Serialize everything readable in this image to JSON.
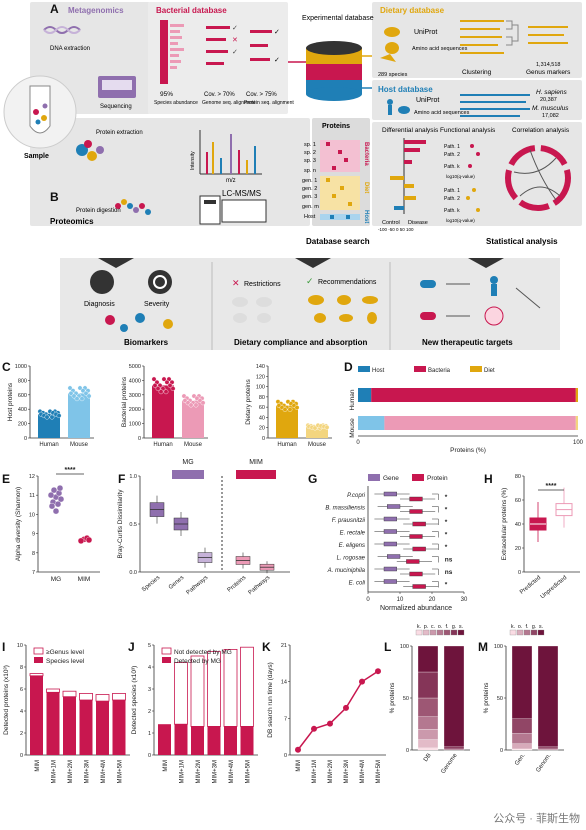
{
  "panels": {
    "A": "A",
    "B": "B",
    "C": "C",
    "D": "D",
    "E": "E",
    "F": "F",
    "G": "G",
    "H": "H",
    "I": "I",
    "J": "J",
    "K": "K",
    "L": "L",
    "M": "M"
  },
  "diagram_a": {
    "metagenomics": "Metagenomics",
    "dna_extraction": "DNA extraction",
    "sequencing": "Sequencing",
    "sample": "Sample",
    "bacterial_db_title": "Bacterial database",
    "pct95": "95%",
    "species_abundance": "Species abundance",
    "cov70": "Cov. > 70%",
    "genome_seq_alignment": "Genome seq. alignment",
    "cov75": "Cov. > 75%",
    "protein_seq_alignment": "Protein seq. alignment",
    "experimental_database": "Experimental database",
    "dietary_db_title": "Dietary database",
    "uniprot1": "UniProt",
    "amino_acid_sequences1": "Amino acid sequences",
    "species289": "289 species",
    "clustering": "Clustering",
    "genus_count": "1,314,518",
    "genus_markers": "Genus markers",
    "host_db_title": "Host database",
    "uniprot2": "UniProt",
    "amino_acid_sequences2": "Amino acid sequences",
    "h_sapiens": "H. sapiens",
    "h_sapiens_n": "20,387",
    "m_musculus": "M. musculus",
    "m_musculus_n": "17,082"
  },
  "diagram_b": {
    "protein_extraction": "Protein extraction",
    "protein_digestion": "Protein digestion",
    "intensity": "Intensity",
    "mz": "m/z",
    "lcmsms": "LC-MS/MS",
    "proteomics": "Proteomics",
    "proteins": "Proteins",
    "sp1": "sp. 1",
    "sp2": "sp. 2",
    "sp3": "sp. 3",
    "spn": "sp. n",
    "gen1": "gen. 1",
    "gen2": "gen. 2",
    "gen3": "gen. 3",
    "genm": "gen. m",
    "host": "Host",
    "bacteria_lbl": "Bacteria",
    "diet_lbl": "Diet",
    "host_lbl": "Host",
    "database_search": "Database search",
    "differential_analysis": "Differential analysis",
    "functional_analysis": "Functional analysis",
    "correlation_analysis": "Correlation analysis",
    "path1": "Path. 1",
    "path2": "Path. 2",
    "pathk": "Path. k",
    "log10q": "log10(q-value)",
    "control": "Control",
    "disease": "Disease",
    "ticks": "-100 -50  0  50  100",
    "statistical_analysis": "Statistical analysis"
  },
  "bottom_strip": {
    "diagnosis": "Diagnosis",
    "severity": "Severity",
    "biomarkers": "Biomarkers",
    "restrictions": "Restrictions",
    "recommendations": "Recommendations",
    "dietary": "Dietary compliance and absorption",
    "therapeutic": "New therapeutic targets"
  },
  "colors": {
    "host_blue": "#1f7fb6",
    "mouse_light": "#7fc4e8",
    "bacteria": "#c8174f",
    "bacteria_light": "#ec9ab6",
    "diet": "#e0a70e",
    "diet_light": "#f3d57f",
    "purple": "#8f6fae",
    "purple_light": "#c6b2d8",
    "panel_gray": "#e6e6e6"
  },
  "chart_c": {
    "plots": [
      {
        "ylabel": "Host proteins",
        "ylim": [
          0,
          1000
        ],
        "ticks": [
          "0",
          "200",
          "400",
          "600",
          "800",
          "1000"
        ],
        "categories": [
          "Human",
          "Mouse"
        ],
        "values": [
          330,
          620
        ]
      },
      {
        "ylabel": "Bacterial proteins",
        "ylim": [
          0,
          5000
        ],
        "ticks": [
          "0",
          "1000",
          "2000",
          "3000",
          "4000",
          "5000"
        ],
        "categories": [
          "Human",
          "Mouse"
        ],
        "values": [
          3650,
          2600
        ]
      },
      {
        "ylabel": "Dietary proteins",
        "ylim": [
          0,
          140
        ],
        "ticks": [
          "0",
          "20",
          "40",
          "60",
          "80",
          "100",
          "120",
          "140"
        ],
        "categories": [
          "Human",
          "Mouse"
        ],
        "values": [
          63,
          22
        ]
      }
    ]
  },
  "chart_data": [
    {
      "panel": "C",
      "type": "bar",
      "subplots": [
        {
          "ylabel": "Host proteins",
          "categories": [
            "Human",
            "Mouse"
          ],
          "values": [
            330,
            620
          ],
          "ylim": [
            0,
            1000
          ]
        },
        {
          "ylabel": "Bacterial proteins",
          "categories": [
            "Human",
            "Mouse"
          ],
          "values": [
            3650,
            2600
          ],
          "ylim": [
            0,
            5000
          ]
        },
        {
          "ylabel": "Dietary proteins",
          "categories": [
            "Human",
            "Mouse"
          ],
          "values": [
            63,
            22
          ],
          "ylim": [
            0,
            140
          ]
        }
      ]
    },
    {
      "panel": "D",
      "type": "bar",
      "orientation": "horizontal",
      "stacked": true,
      "categories": [
        "Human",
        "Mouse"
      ],
      "series": [
        {
          "name": "Host",
          "values": [
            6,
            12
          ]
        },
        {
          "name": "Bacteria",
          "values": [
            93,
            87
          ]
        },
        {
          "name": "Diet",
          "values": [
            1,
            1
          ]
        }
      ],
      "xlabel": "Proteins (%)",
      "xlim": [
        0,
        100
      ],
      "xticks": [
        "0",
        "100"
      ]
    },
    {
      "panel": "E",
      "type": "scatter",
      "categories": [
        "MG",
        "MIM"
      ],
      "values": [
        10.9,
        8.7
      ],
      "ylabel": "Alpha diversity (Shannon)",
      "ylim": [
        7,
        12
      ],
      "yticks": [
        "7",
        "8",
        "9",
        "10",
        "11",
        "12"
      ],
      "significance": "****"
    },
    {
      "panel": "F",
      "type": "box",
      "categories": [
        "Species",
        "Genes",
        "Pathways",
        "Proteins",
        "Pathways"
      ],
      "groups": [
        "MG",
        "MG",
        "MG",
        "MIM",
        "MIM"
      ],
      "medians": [
        0.65,
        0.5,
        0.15,
        0.12,
        0.05
      ],
      "ylabel": "Bray-Curtis Dissimilarity",
      "ylim": [
        0,
        1
      ],
      "yticks": [
        "0.0",
        "0.5",
        "1.0"
      ],
      "group_labels": [
        "MG",
        "MIM"
      ]
    },
    {
      "panel": "G",
      "type": "box",
      "orientation": "horizontal",
      "categories": [
        "P.copri",
        "B. massiliensis",
        "F. prausnitzii",
        "E. rectale",
        "E. eligens",
        "L. rogosae",
        "A. muciniphila",
        "E. coli"
      ],
      "series": [
        {
          "name": "Gene",
          "medians": [
            7,
            8,
            7,
            7,
            7,
            8,
            7,
            7
          ]
        },
        {
          "name": "Protein",
          "medians": [
            15,
            15,
            16,
            15,
            16,
            14,
            15,
            16
          ]
        }
      ],
      "significance": [
        "*",
        "*",
        "*",
        "*",
        "*",
        "ns",
        "ns",
        "*"
      ],
      "xlabel": "Normalized abundance",
      "xlim": [
        0,
        30
      ],
      "xticks": [
        "0",
        "10",
        "20",
        "30"
      ]
    },
    {
      "panel": "H",
      "type": "box",
      "categories": [
        "Predicted",
        "Unpredicted"
      ],
      "medians": [
        40,
        52
      ],
      "ylabel": "Extracellular proteins (%)",
      "ylim": [
        0,
        80
      ],
      "yticks": [
        "0",
        "20",
        "40",
        "60",
        "80"
      ],
      "significance": "****"
    },
    {
      "panel": "I",
      "type": "bar",
      "stacked": true,
      "categories": [
        "MIM",
        "MIM+1M",
        "MIM+2M",
        "MIM+3M",
        "MIM+4M",
        "MIM+5M"
      ],
      "series": [
        {
          "name": "Species level",
          "values": [
            7.2,
            5.7,
            5.3,
            5.0,
            4.9,
            5.0
          ]
        },
        {
          "name": "≥Genus level",
          "values": [
            0.2,
            0.3,
            0.5,
            0.6,
            0.6,
            0.6
          ]
        }
      ],
      "ylabel": "Detected proteins (x10³)",
      "ylim": [
        0,
        10
      ],
      "yticks": [
        "0",
        "2",
        "4",
        "6",
        "8",
        "10"
      ]
    },
    {
      "panel": "J",
      "type": "bar",
      "stacked": true,
      "categories": [
        "MIM",
        "MIM+1M",
        "MIM+2M",
        "MIM+3M",
        "MIM+4M",
        "MIM+5M"
      ],
      "series": [
        {
          "name": "Detected by MG",
          "values": [
            1.4,
            1.4,
            1.3,
            1.3,
            1.3,
            1.3
          ]
        },
        {
          "name": "Not detected by MG",
          "values": [
            0,
            2.8,
            3.2,
            3.4,
            3.5,
            3.6
          ]
        }
      ],
      "ylabel": "Detected species (x10³)",
      "ylim": [
        0,
        5
      ],
      "yticks": [
        "0",
        "1",
        "2",
        "3",
        "4",
        "5"
      ]
    },
    {
      "panel": "K",
      "type": "line",
      "categories": [
        "MIM",
        "MIM+1M",
        "MIM+2M",
        "MIM+3M",
        "MIM+4M",
        "MIM+5M"
      ],
      "values": [
        1,
        5,
        6,
        9,
        14,
        16
      ],
      "ylabel": "DB search run time (days)",
      "ylim": [
        0,
        21
      ],
      "yticks": [
        "0",
        "7",
        "14",
        "21"
      ]
    },
    {
      "panel": "L",
      "type": "bar",
      "stacked": true,
      "categories": [
        "DB",
        "Genome"
      ],
      "series": [
        {
          "name": "k.",
          "values": [
            2,
            0
          ]
        },
        {
          "name": "p.",
          "values": [
            8,
            0
          ]
        },
        {
          "name": "c.",
          "values": [
            10,
            0
          ]
        },
        {
          "name": "o.",
          "values": [
            12,
            0
          ]
        },
        {
          "name": "f.",
          "values": [
            18,
            1
          ]
        },
        {
          "name": "g.",
          "values": [
            25,
            2
          ]
        },
        {
          "name": "s.",
          "values": [
            25,
            97
          ]
        }
      ],
      "ylabel": "% proteins",
      "ylim": [
        0,
        100
      ],
      "yticks": [
        "0",
        "50",
        "100"
      ]
    },
    {
      "panel": "M",
      "type": "bar",
      "stacked": true,
      "categories": [
        "Gen.",
        "Genom."
      ],
      "series": [
        {
          "name": "k.",
          "values": [
            1,
            0
          ]
        },
        {
          "name": "o.",
          "values": [
            5,
            0
          ]
        },
        {
          "name": "f.",
          "values": [
            10,
            1
          ]
        },
        {
          "name": "g.",
          "values": [
            14,
            2
          ]
        },
        {
          "name": "s.",
          "values": [
            70,
            97
          ]
        }
      ],
      "ylabel": "% proteins",
      "ylim": [
        0,
        100
      ],
      "yticks": [
        "0",
        "50",
        "100"
      ]
    }
  ],
  "labels": {
    "human": "Human",
    "mouse": "Mouse",
    "host": "Host",
    "bacteria": "Bacteria",
    "diet": "Diet",
    "proteins_pct": "Proteins (%)",
    "zero": "0",
    "hundred": "100",
    "alpha": "Alpha diversity (Shannon)",
    "stars4": "****",
    "mg": "MG",
    "mim": "MIM",
    "bray": "Bray-Curtis Dissimilarity",
    "gene": "Gene",
    "protein": "Protein",
    "norm_abund": "Normalized abundance",
    "extracellular": "Extracellular proteins (%)",
    "predicted": "Predicted",
    "unpredicted": "Unpredicted",
    "genus_level": "≥Genus level",
    "species_level": "Species level",
    "detected_proteins": "Detected proteins (x10³)",
    "not_detected_mg": "Not detected by MG",
    "detected_mg": "Detected by MG",
    "detected_species": "Detected species (x10³)",
    "db_runtime": "DB search run time (days)",
    "pct_proteins": "% proteins",
    "taxa_header": "k. p. c. o. f. g. s.",
    "watermark": "公众号 · 菲斯生物"
  }
}
